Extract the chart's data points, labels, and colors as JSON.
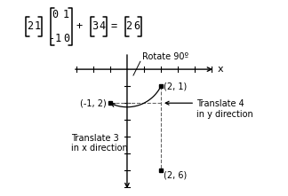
{
  "bg_color": "#ffffff",
  "point_original": [
    2,
    1
  ],
  "point_rotated": [
    -1,
    2
  ],
  "point_translated": [
    2,
    6
  ],
  "rotate_label": "Rotate 90º",
  "translate_x_label": "Translate 3\nin x direction",
  "translate_y_label": "Translate 4\nin y direction",
  "point_rotated_label": "(-1, 2)",
  "point_original_label": "(2, 1)",
  "point_translated_label": "(2, 6)",
  "font_size": 7,
  "formula": {
    "mat1": [
      "2",
      "1"
    ],
    "mat2": [
      [
        "0",
        "1"
      ],
      [
        "-1",
        "0"
      ]
    ],
    "mat3": [
      "3",
      "4"
    ],
    "result": [
      "2",
      "6"
    ]
  }
}
